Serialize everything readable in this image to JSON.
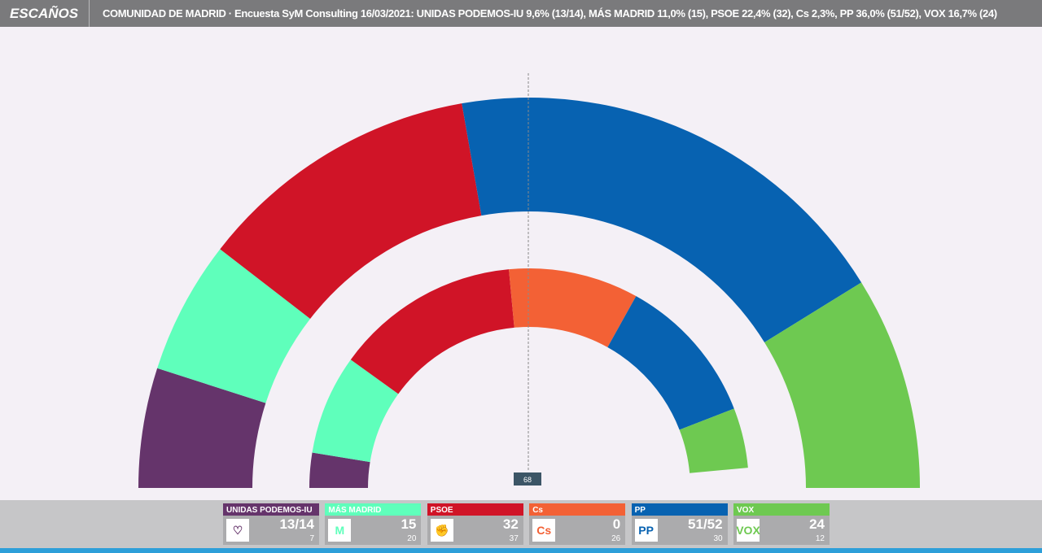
{
  "header": {
    "tag": "ESCAÑOS",
    "title": "COMUNIDAD DE MADRID · Encuesta SyM Consulting 16/03/2021: UNIDAS PODEMOS-IU 9,6% (13/14), MÁS MADRID 11,0% (15), PSOE 22,4% (32), Cs 2,3%, PP 36,0% (51/52), VOX 16,7% (24)"
  },
  "majority_label": "68",
  "chart_data": {
    "type": "hemicycle",
    "title": "COMUNIDAD DE MADRID · Encuesta SyM Consulting 16/03/2021",
    "total_seats": 136,
    "majority": 68,
    "outer_ring": {
      "series": [
        {
          "name": "UNIDAS PODEMOS-IU",
          "seats": 13.5,
          "color": "#65346b"
        },
        {
          "name": "MÁS MADRID",
          "seats": 15,
          "color": "#5fffbb"
        },
        {
          "name": "PSOE",
          "seats": 32,
          "color": "#d01427"
        },
        {
          "name": "Cs",
          "seats": 0,
          "color": "#f36135"
        },
        {
          "name": "PP",
          "seats": 51.5,
          "color": "#0762b1"
        },
        {
          "name": "VOX",
          "seats": 24,
          "color": "#6ec951"
        }
      ]
    },
    "inner_ring": {
      "series": [
        {
          "name": "UNIDAS PODEMOS-IU",
          "seats": 7,
          "color": "#65346b"
        },
        {
          "name": "MÁS MADRID",
          "seats": 20,
          "color": "#5fffbb"
        },
        {
          "name": "PSOE",
          "seats": 37,
          "color": "#d01427"
        },
        {
          "name": "Cs",
          "seats": 26,
          "color": "#f36135"
        },
        {
          "name": "PP",
          "seats": 30,
          "color": "#0762b1"
        },
        {
          "name": "VOX",
          "seats": 12,
          "color": "#6ec951"
        }
      ]
    }
  },
  "parties": [
    {
      "name": "UNIDAS PODEMOS-IU",
      "value": "13/14",
      "previous": "7",
      "color": "#65346b",
      "icon": "heart-icon",
      "logo_text": "♡"
    },
    {
      "name": "MÁS MADRID",
      "value": "15",
      "previous": "20",
      "color": "#5fffbb",
      "icon": "mas-madrid-icon",
      "logo_text": "M"
    },
    {
      "name": "PSOE",
      "value": "32",
      "previous": "37",
      "color": "#d01427",
      "icon": "psoe-rose-icon",
      "logo_text": "✊"
    },
    {
      "name": "Cs",
      "value": "0",
      "previous": "26",
      "color": "#f36135",
      "icon": "cs-logo-icon",
      "logo_text": "Cs"
    },
    {
      "name": "PP",
      "value": "51/52",
      "previous": "30",
      "color": "#0762b1",
      "icon": "pp-logo-icon",
      "logo_text": "PP"
    },
    {
      "name": "VOX",
      "value": "24",
      "previous": "12",
      "color": "#6ec951",
      "icon": "vox-logo-icon",
      "logo_text": "VOX"
    }
  ]
}
